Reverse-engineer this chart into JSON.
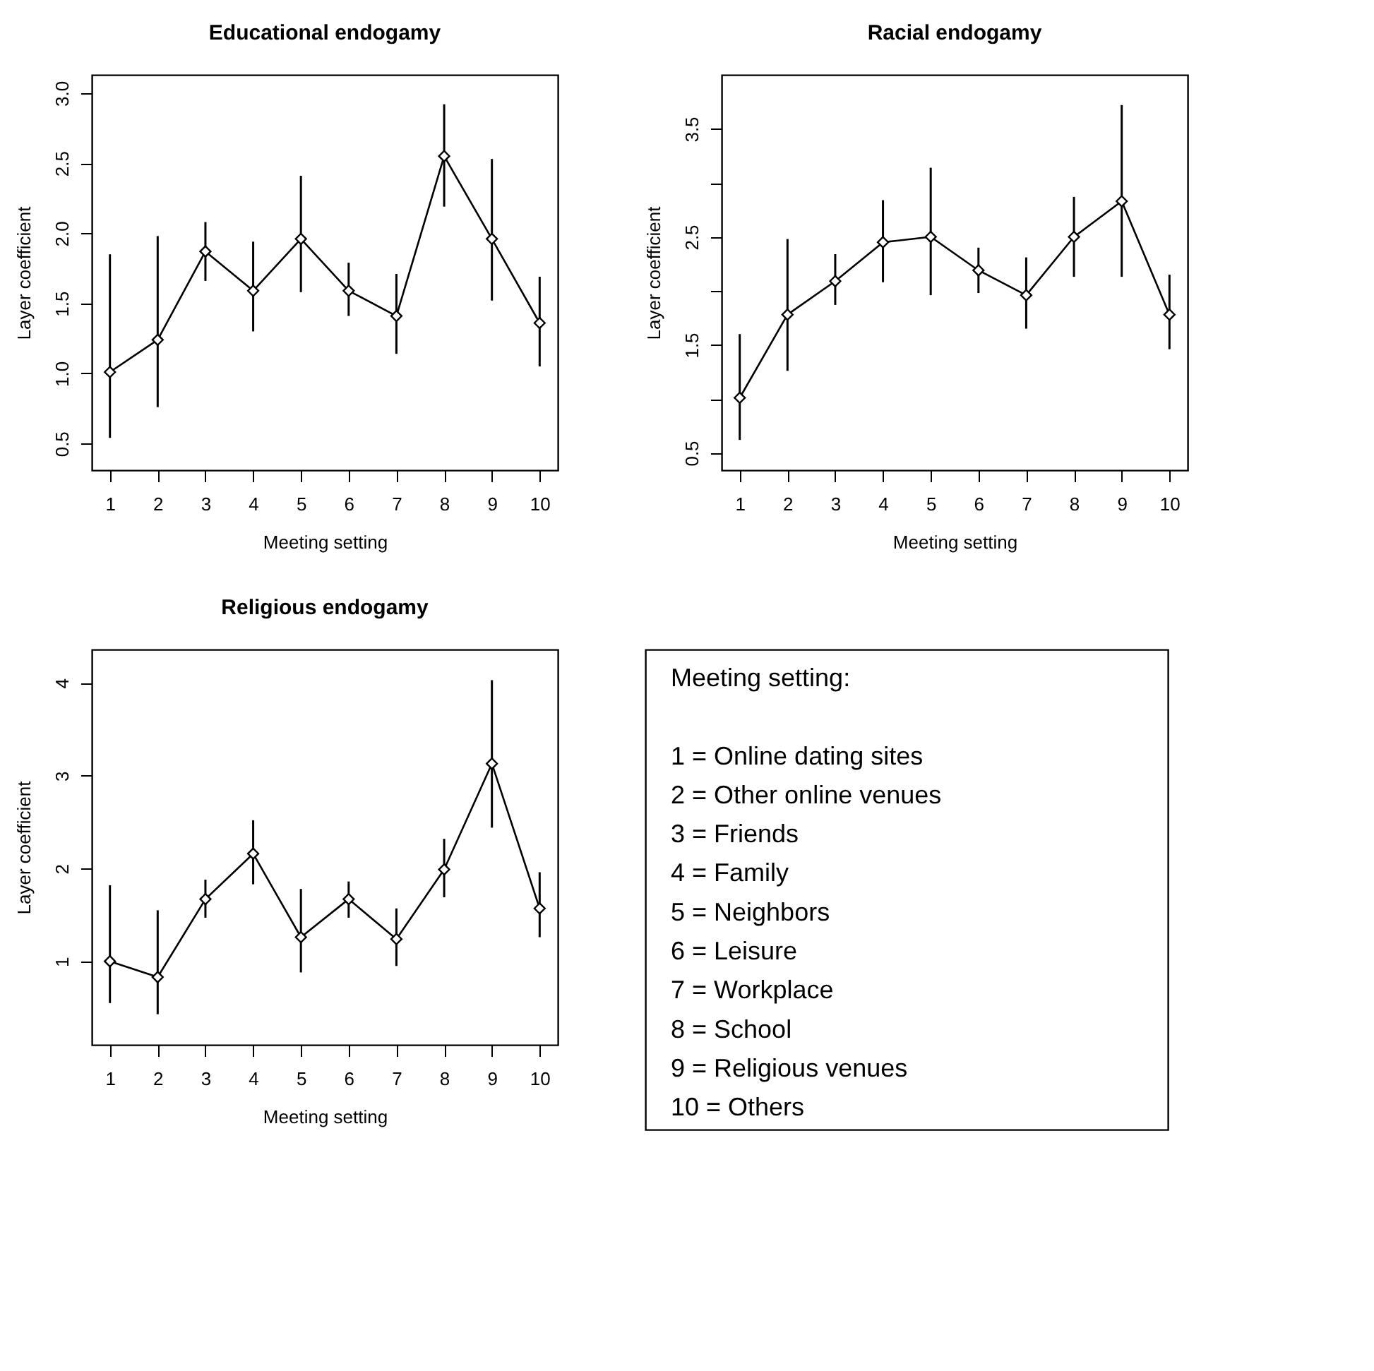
{
  "chart_data": [
    {
      "type": "line",
      "title": "Educational endogamy",
      "xlabel": "Meeting setting",
      "ylabel": "Layer coefficient",
      "x": [
        1,
        2,
        3,
        4,
        5,
        6,
        7,
        8,
        9,
        10
      ],
      "xlim": [
        0.62,
        10.38
      ],
      "xticks": [
        1,
        2,
        3,
        4,
        5,
        6,
        7,
        8,
        9,
        10
      ],
      "ylim": [
        0.31,
        3.13
      ],
      "yticks": [
        0.5,
        {
          "value": 1,
          "label": "1.0"
        },
        1.5,
        {
          "value": 2,
          "label": "2.0"
        },
        2.5,
        {
          "value": 3,
          "label": "3.0"
        }
      ],
      "marker": "diamond",
      "line_style": "solid",
      "grid": false,
      "series": [
        {
          "color": "#000000",
          "values": [
            1.01,
            1.24,
            1.87,
            1.59,
            1.96,
            1.59,
            1.41,
            2.55,
            1.96,
            1.36
          ],
          "errors": [
            [
              0.54,
              1.85
            ],
            [
              0.76,
              1.98
            ],
            [
              1.66,
              2.08
            ],
            [
              1.3,
              1.94
            ],
            [
              1.58,
              2.41
            ],
            [
              1.41,
              1.79
            ],
            [
              1.14,
              1.71
            ],
            [
              2.19,
              2.92
            ],
            [
              1.52,
              2.53
            ],
            [
              1.05,
              1.69
            ]
          ]
        }
      ]
    },
    {
      "type": "line",
      "title": "Racial endogamy",
      "xlabel": "Meeting setting",
      "ylabel": "Layer coefficient",
      "x": [
        1,
        2,
        3,
        4,
        5,
        6,
        7,
        8,
        9,
        10
      ],
      "xlim": [
        0.62,
        10.38
      ],
      "xticks": [
        1,
        2,
        3,
        4,
        5,
        6,
        7,
        8,
        9,
        10
      ],
      "ylim": [
        0.34,
        4.0
      ],
      "yticks": [
        0.5,
        {
          "value": 1.0,
          "label": null
        },
        1.5,
        {
          "value": 2.0,
          "label": null
        },
        2.5,
        {
          "value": 3.0,
          "label": null
        },
        3.5
      ],
      "marker": "diamond",
      "line_style": "solid",
      "grid": false,
      "series": [
        {
          "color": "#000000",
          "values": [
            1.01,
            1.78,
            2.09,
            2.45,
            2.5,
            2.19,
            1.96,
            2.5,
            2.83,
            1.78
          ],
          "errors": [
            [
              0.62,
              1.6
            ],
            [
              1.26,
              2.48
            ],
            [
              1.87,
              2.34
            ],
            [
              2.08,
              2.84
            ],
            [
              1.96,
              3.14
            ],
            [
              1.98,
              2.4
            ],
            [
              1.65,
              2.31
            ],
            [
              2.13,
              2.87
            ],
            [
              2.13,
              3.72
            ],
            [
              1.46,
              2.15
            ]
          ]
        }
      ]
    },
    {
      "type": "line",
      "title": "Religious endogamy",
      "xlabel": "Meeting setting",
      "ylabel": "Layer coefficient",
      "x": [
        1,
        2,
        3,
        4,
        5,
        6,
        7,
        8,
        9,
        10
      ],
      "xlim": [
        0.62,
        10.38
      ],
      "xticks": [
        1,
        2,
        3,
        4,
        5,
        6,
        7,
        8,
        9,
        10
      ],
      "ylim": [
        0.1,
        4.36
      ],
      "yticks": [
        1,
        2,
        3,
        4
      ],
      "marker": "diamond",
      "line_style": "solid",
      "grid": false,
      "series": [
        {
          "color": "#000000",
          "values": [
            1.0,
            0.83,
            1.67,
            2.16,
            1.26,
            1.67,
            1.24,
            1.99,
            3.13,
            1.57
          ],
          "errors": [
            [
              0.55,
              1.82
            ],
            [
              0.43,
              1.55
            ],
            [
              1.47,
              1.88
            ],
            [
              1.83,
              2.52
            ],
            [
              0.88,
              1.78
            ],
            [
              1.47,
              1.86
            ],
            [
              0.95,
              1.57
            ],
            [
              1.69,
              2.32
            ],
            [
              2.44,
              4.03
            ],
            [
              1.26,
              1.96
            ]
          ]
        }
      ]
    },
    {
      "type": "other",
      "title": "Meeting setting:",
      "annotations": [
        "1 = Online dating sites",
        "2 = Other online venues",
        "3 = Friends",
        "4 = Family",
        "5 = Neighbors",
        "6 = Leisure",
        "7 = Workplace",
        "8 = School",
        "9 = Religious venues",
        "10 = Others"
      ]
    }
  ]
}
